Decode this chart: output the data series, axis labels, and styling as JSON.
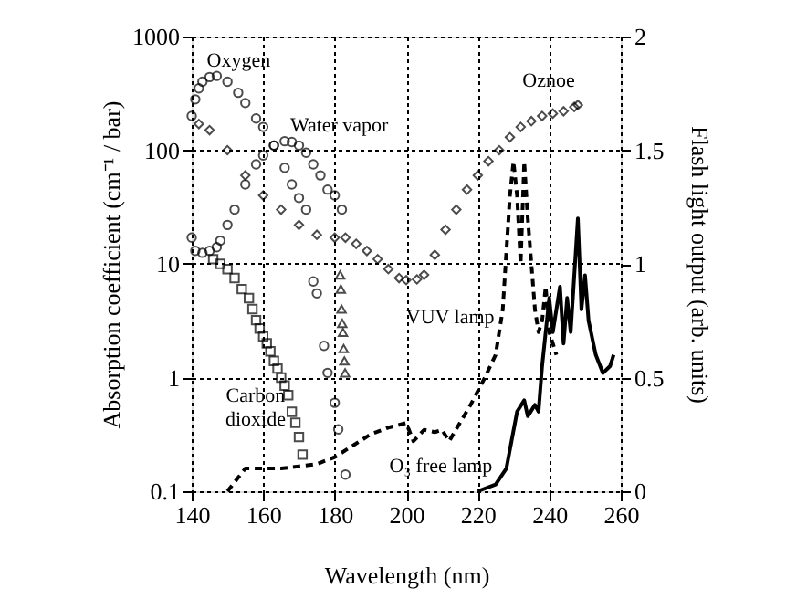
{
  "chart_data": {
    "type": "scatter",
    "xlabel": "Wavelength (nm)",
    "ylabel": "Absorption coefficient (cm⁻¹ / bar)",
    "y2label": "Flash light output (arb. units)",
    "xlim": [
      140,
      260
    ],
    "xticks": [
      140,
      160,
      180,
      200,
      220,
      240,
      260
    ],
    "ylim": [
      0.1,
      1000
    ],
    "yticks": [
      0.1,
      1,
      10,
      100,
      1000
    ],
    "log": "y",
    "y2lim": [
      0,
      2
    ],
    "y2ticks": [
      0,
      0.5,
      1,
      1.5,
      2
    ],
    "grid": true,
    "series": [
      {
        "name": "Oxygen",
        "marker": "circle",
        "color": "#000000",
        "x": [
          140,
          141,
          142,
          143,
          145,
          147,
          150,
          153,
          155,
          158,
          160,
          163,
          166,
          168,
          170,
          172,
          174,
          175,
          177,
          178,
          180,
          181,
          183
        ],
        "values": [
          200,
          280,
          350,
          400,
          440,
          450,
          400,
          320,
          260,
          190,
          160,
          110,
          70,
          50,
          38,
          30,
          7,
          5.5,
          1.9,
          1.1,
          0.6,
          0.35,
          0.14
        ]
      },
      {
        "name": "Water vapor",
        "marker": "circle",
        "color": "#000000",
        "x": [
          140,
          141,
          143,
          145,
          147,
          148,
          150,
          152,
          155,
          158,
          160,
          163,
          166,
          168,
          170,
          172,
          174,
          176,
          178,
          180,
          182
        ],
        "values": [
          17,
          13,
          12.5,
          13,
          14,
          16,
          22,
          30,
          50,
          75,
          90,
          110,
          120,
          118,
          110,
          95,
          75,
          60,
          45,
          40,
          30
        ]
      },
      {
        "marker": "triangle",
        "color": "#000000",
        "x": [
          181.5,
          181.7,
          181.9,
          182.1,
          182.3,
          182.5,
          182.7,
          182.9
        ],
        "values": [
          8,
          6,
          4,
          3,
          2.5,
          1.8,
          1.4,
          1.1
        ]
      },
      {
        "name": "Oznoe",
        "marker": "diamond",
        "color": "#000000",
        "x": [
          142,
          145,
          150,
          155,
          160,
          165,
          170,
          175,
          180,
          183,
          186,
          189,
          192,
          195,
          198,
          200,
          203,
          205,
          208,
          211,
          214,
          217,
          220,
          223,
          226,
          229,
          232,
          235,
          238,
          241,
          244,
          247,
          248
        ],
        "values": [
          170,
          150,
          100,
          60,
          40,
          30,
          22,
          18,
          17,
          17,
          15,
          13,
          11,
          9,
          7.5,
          7.2,
          7.3,
          8,
          12,
          20,
          30,
          45,
          60,
          80,
          100,
          130,
          160,
          180,
          200,
          210,
          220,
          240,
          250
        ]
      },
      {
        "name": "Carbon dioxide",
        "marker": "square",
        "color": "#000000",
        "x": [
          146,
          148,
          150,
          152,
          154,
          156,
          157,
          158,
          159,
          160,
          161,
          162,
          163,
          164,
          165,
          166,
          167,
          168,
          169,
          170,
          171
        ],
        "values": [
          11,
          10,
          9,
          7.5,
          6,
          5,
          4,
          3.2,
          2.7,
          2.3,
          2,
          1.7,
          1.4,
          1.2,
          1.0,
          0.85,
          0.7,
          0.5,
          0.4,
          0.3,
          0.21
        ]
      },
      {
        "name": "VUV lamp",
        "type": "line",
        "axis": "y2",
        "line_style": "dashed",
        "marker": "none",
        "color": "#000000",
        "x": [
          150,
          153,
          155,
          160,
          165,
          170,
          175,
          180,
          185,
          190,
          195,
          200,
          202,
          205,
          208,
          210,
          212,
          215,
          218,
          222,
          225,
          227,
          229,
          230,
          231,
          232,
          233,
          234,
          236,
          237,
          238,
          239,
          240,
          242
        ],
        "values": [
          0,
          0.06,
          0.1,
          0.1,
          0.1,
          0.11,
          0.12,
          0.15,
          0.2,
          0.25,
          0.28,
          0.3,
          0.22,
          0.27,
          0.26,
          0.27,
          0.22,
          0.3,
          0.38,
          0.5,
          0.6,
          0.8,
          1.3,
          1.45,
          1.3,
          1.0,
          1.45,
          1.2,
          0.8,
          0.7,
          0.75,
          0.9,
          0.7,
          0.6
        ]
      },
      {
        "name": "O₃ free lamp",
        "type": "line",
        "axis": "y2",
        "line_style": "solid",
        "marker": "none",
        "color": "#000000",
        "x": [
          220,
          225,
          228,
          231,
          233,
          234,
          236,
          237,
          238,
          240,
          241,
          243,
          244,
          245,
          246,
          248,
          249,
          250,
          251,
          253,
          255,
          257,
          258
        ],
        "values": [
          0,
          0.03,
          0.1,
          0.35,
          0.4,
          0.33,
          0.38,
          0.35,
          0.55,
          0.85,
          0.7,
          0.9,
          0.65,
          0.85,
          0.7,
          1.2,
          0.8,
          0.95,
          0.75,
          0.6,
          0.52,
          0.55,
          0.6
        ]
      }
    ]
  }
}
